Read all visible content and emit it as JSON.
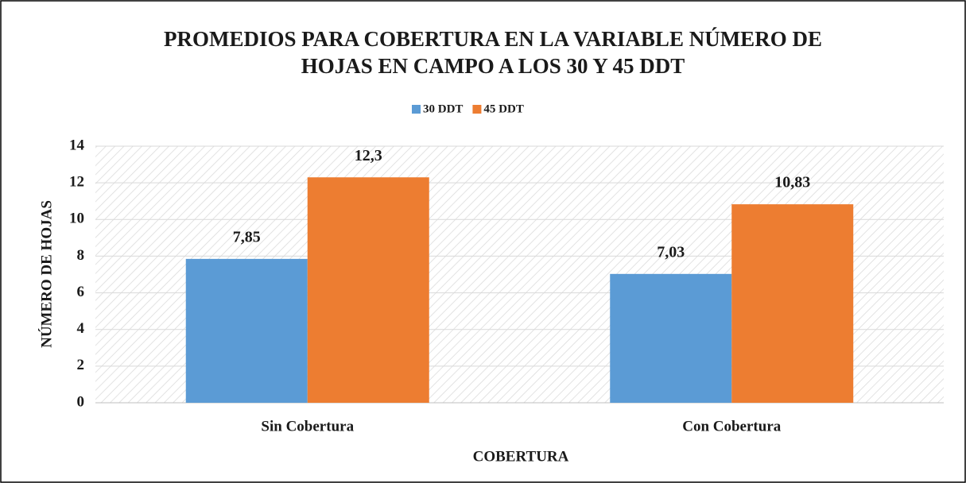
{
  "chart_data": {
    "type": "bar",
    "title": [
      "PROMEDIOS PARA COBERTURA EN LA VARIABLE NÚMERO DE",
      "HOJAS EN CAMPO A LOS 30 Y 45 DDT"
    ],
    "x_label": "COBERTURA",
    "y_label": "NÚMERO DE HOJAS",
    "categories": [
      "Sin Cobertura",
      "Con Cobertura"
    ],
    "series": [
      {
        "name": "30 DDT",
        "color": "#5b9bd5",
        "values": [
          7.85,
          7.03
        ],
        "value_labels": [
          "7,85",
          "7,03"
        ]
      },
      {
        "name": "45 DDT",
        "color": "#ed7d31",
        "values": [
          12.3,
          10.83
        ],
        "value_labels": [
          "12,3",
          "10,83"
        ]
      }
    ],
    "ylim": [
      0,
      14
    ],
    "yticks": [
      0,
      2,
      4,
      6,
      8,
      10,
      12,
      14
    ],
    "grid": true,
    "legend": "top"
  }
}
